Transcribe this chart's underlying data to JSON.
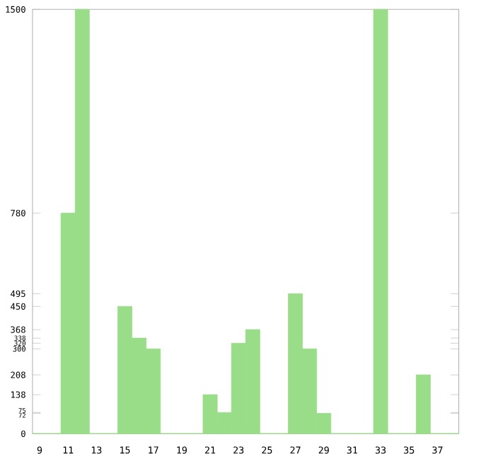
{
  "chart_data": {
    "type": "bar",
    "categories": [
      "9",
      null,
      "11",
      null,
      "13",
      null,
      "15",
      null,
      "17",
      null,
      "19",
      null,
      "21",
      null,
      "23",
      null,
      "25",
      null,
      "27",
      null,
      "29",
      null,
      "31",
      null,
      "33",
      null,
      "35",
      null,
      "37",
      null
    ],
    "values": [
      0,
      0,
      780,
      1500,
      0,
      0,
      450,
      338,
      300,
      0,
      0,
      0,
      138,
      75,
      320,
      368,
      0,
      0,
      495,
      300,
      72,
      0,
      0,
      0,
      1500,
      0,
      0,
      208,
      0,
      0
    ],
    "color": "#99dd88",
    "ylim": [
      0,
      1500
    ],
    "yticks": [
      0,
      72,
      75,
      138,
      208,
      300,
      320,
      338,
      368,
      450,
      495,
      780,
      1500
    ]
  }
}
